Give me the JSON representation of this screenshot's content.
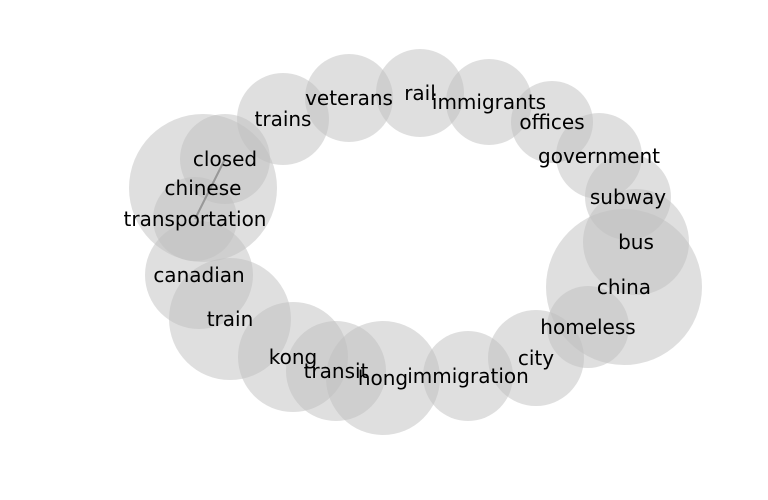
{
  "diagram": {
    "type": "word-network",
    "node_color": "#bfbfbf",
    "edge_color": "#808080",
    "nodes": [
      {
        "id": "chinese",
        "label": "chinese"
      },
      {
        "id": "china",
        "label": "china"
      },
      {
        "id": "hong",
        "label": "hong"
      },
      {
        "id": "train",
        "label": "train"
      },
      {
        "id": "kong",
        "label": "kong"
      },
      {
        "id": "canadian",
        "label": "canadian"
      },
      {
        "id": "transit",
        "label": "transit"
      },
      {
        "id": "bus",
        "label": "bus"
      },
      {
        "id": "city",
        "label": "city"
      },
      {
        "id": "immigration",
        "label": "immigration"
      },
      {
        "id": "homeless",
        "label": "homeless"
      },
      {
        "id": "trains",
        "label": "trains"
      },
      {
        "id": "transportation",
        "label": "transportation"
      },
      {
        "id": "closed",
        "label": "closed"
      },
      {
        "id": "veterans",
        "label": "veterans"
      },
      {
        "id": "immigrants",
        "label": "immigrants"
      },
      {
        "id": "government",
        "label": "government"
      },
      {
        "id": "rail",
        "label": "rail"
      },
      {
        "id": "offices",
        "label": "offices"
      },
      {
        "id": "subway",
        "label": "subway"
      }
    ],
    "edges": [
      {
        "source": "closed",
        "target": "transportation"
      }
    ]
  }
}
